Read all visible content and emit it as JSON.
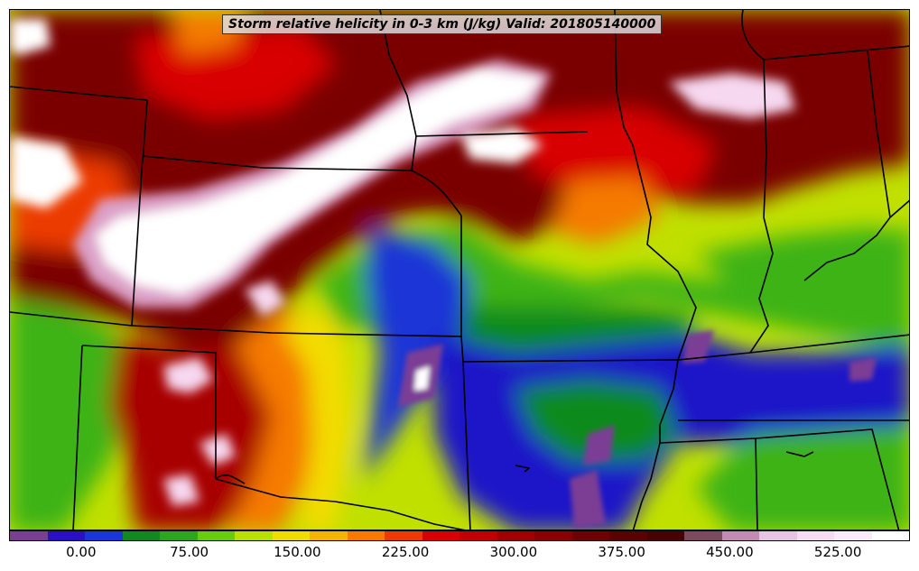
{
  "map": {
    "title": "Storm relative helicity in 0-3 km (J/kg) Valid: 201805140000",
    "field": "storm-relative-helicity-0-3km",
    "palette": {
      "very_low": "#7b3e95",
      "low_blue_dark": "#1a12c8",
      "low_blue": "#1b3ee0",
      "green_dark": "#0f8a1e",
      "green": "#3cb317",
      "green_light": "#7ad20a",
      "yellow_green": "#c0e000",
      "yellow": "#f3dc00",
      "orange_yellow": "#f5b000",
      "orange": "#f57a00",
      "red_orange": "#ec3a00",
      "red": "#d80000",
      "dark_red": "#a80000",
      "maroon": "#7a0000",
      "deep_maroon": "#5a0000",
      "mauve": "#a45a7c",
      "pink": "#dca0c8",
      "light_pink": "#f6d8f0",
      "white": "#ffffff",
      "boundary": "#000000"
    }
  },
  "colorbar": {
    "colors": [
      "#7b3e95",
      "#2a10c0",
      "#1b36d6",
      "#0f8a1e",
      "#2aa81b",
      "#66cc12",
      "#b8e000",
      "#f0dc00",
      "#f5b300",
      "#f57a00",
      "#ec3a00",
      "#d80000",
      "#c00000",
      "#a00000",
      "#880000",
      "#700000",
      "#5c0000",
      "#4a0000",
      "#7a4a5e",
      "#c28ab5",
      "#e8c4e4",
      "#f6dcf2",
      "#fbeafa",
      "#ffffff"
    ],
    "labels": [
      "0.00",
      "75.00",
      "150.00",
      "225.00",
      "300.00",
      "375.00",
      "450.00",
      "525.00"
    ],
    "values": [
      0,
      75,
      150,
      225,
      300,
      375,
      450,
      525
    ],
    "min": -50,
    "max": 575
  }
}
